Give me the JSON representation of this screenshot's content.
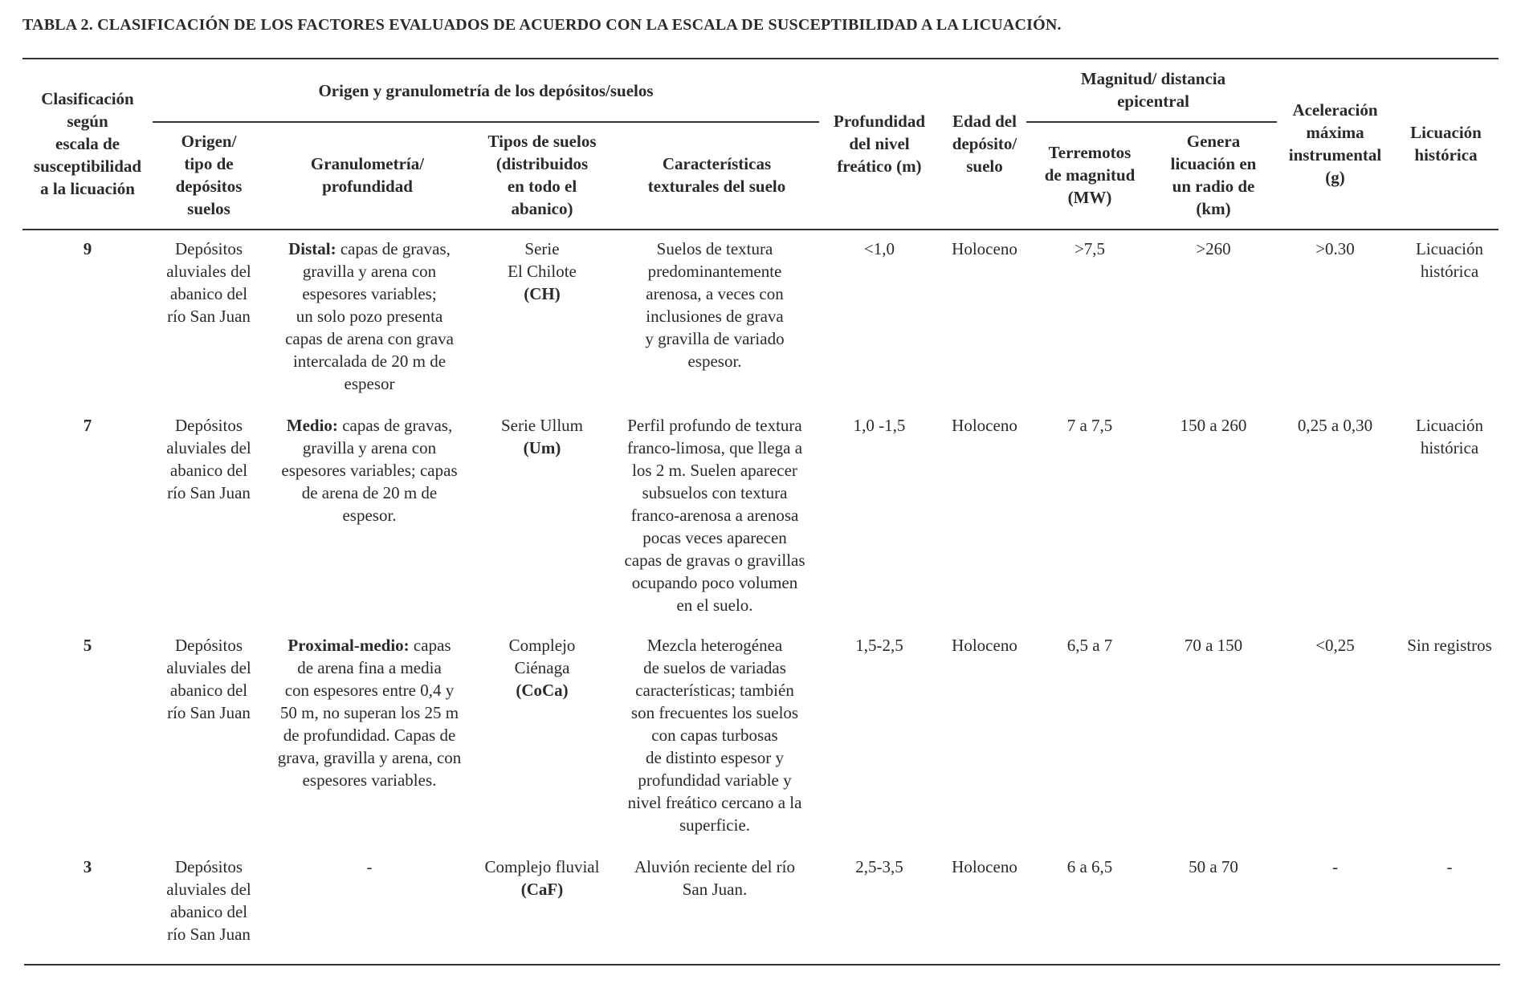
{
  "title": "TABLA 2. CLASIFICACIÓN DE LOS FACTORES EVALUADOS DE ACUERDO CON LA ESCALA DE SUSCEPTIBILIDAD A LA LICUACIÓN.",
  "headers": {
    "clasificacion": "Clasificación\nsegún\nescala de\nsusceptibilidad\na la licuación",
    "origen_group": "Origen y granulometría de los depósitos/suelos",
    "origen": "Origen/\ntipo de\ndepósitos\nsuelos",
    "granulometria": "Granulometría/\nprofundidad",
    "tipos": "Tipos de suelos\n(distribuidos\nen todo el\nabanico)",
    "caracteristicas": "Características\ntexturales del suelo",
    "profundidad": "Profundidad\ndel nivel\nfreático (m)",
    "edad": "Edad del\ndepósito/\nsuelo",
    "magnitud_group": "Magnitud/ distancia\nepicentral",
    "terremotos": "Terremotos\nde magnitud\n(MW)",
    "genera": "Genera\nlicuación en\nun radio de\n(km)",
    "aceleracion": "Aceleración\nmáxima\ninstrumental\n(g)",
    "licuacion": "Licuación\nhistórica"
  },
  "rows": [
    {
      "clase": "9",
      "origen": "Depósitos\naluviales del\nabanico del\nrío San Juan",
      "gran_label": "Distal:",
      "gran_text": " capas de gravas,\ngravilla y arena con\nespesores variables;\nun solo pozo presenta\ncapas de arena con grava\nintercalada de 20 m de\nespesor",
      "tipo": "Serie\nEl Chilote",
      "tipo_code": "(CH)",
      "caract": "Suelos  de textura\npredominantemente\narenosa, a veces con\ninclusiones de grava\ny gravilla de variado\nespesor.",
      "prof": "<1,0",
      "edad": "Holoceno",
      "terr": ">7,5",
      "genera": ">260",
      "acel": ">0.30",
      "licu": "Licuación\nhistórica"
    },
    {
      "clase": "7",
      "origen": "Depósitos\naluviales del\nabanico del\nrío San Juan",
      "gran_label": "Medio:",
      "gran_text": " capas de gravas,\ngravilla y arena con\nespesores variables; capas\nde arena de 20 m de\nespesor.",
      "tipo": "Serie Ullum",
      "tipo_code": "(Um)",
      "caract": "Perfil profundo de textura\nfranco-limosa, que llega a\nlos 2 m. Suelen aparecer\nsubsuelos con textura\nfranco-arenosa a arenosa\npocas veces aparecen\ncapas de gravas o gravillas\nocupando poco volumen\nen el suelo.",
      "prof": "1,0 -1,5",
      "edad": "Holoceno",
      "terr": "7 a 7,5",
      "genera": "150 a 260",
      "acel": "0,25 a 0,30",
      "licu": "Licuación\nhistórica"
    },
    {
      "clase": "5",
      "origen": "Depósitos\naluviales del\nabanico del\nrío San Juan",
      "gran_label": "Proximal-medio:",
      "gran_text": " capas\nde arena fina a media\ncon espesores entre 0,4 y\n50 m, no superan los 25 m\nde profundidad. Capas de\ngrava, gravilla y arena, con\nespesores variables.",
      "tipo": "Complejo\nCiénaga",
      "tipo_code": "(CoCa)",
      "caract": "Mezcla heterogénea\nde suelos de variadas\ncaracterísticas; también\nson frecuentes los suelos\ncon capas turbosas\nde distinto espesor y\nprofundidad variable y\nnivel freático cercano a la\nsuperficie.",
      "prof": "1,5-2,5",
      "edad": "Holoceno",
      "terr": "6,5 a 7",
      "genera": "70 a 150",
      "acel": "<0,25",
      "licu": "Sin registros"
    },
    {
      "clase": "3",
      "origen": "Depósitos\naluviales del\nabanico del\nrío San Juan",
      "gran_label": "",
      "gran_text": "-",
      "tipo": "Complejo fluvial",
      "tipo_code": "(CaF)",
      "caract": "Aluvión reciente del río\nSan Juan.",
      "prof": "2,5-3,5",
      "edad": "Holoceno",
      "terr": "6 a 6,5",
      "genera": "50 a 70",
      "acel": "-",
      "licu": "-"
    }
  ]
}
